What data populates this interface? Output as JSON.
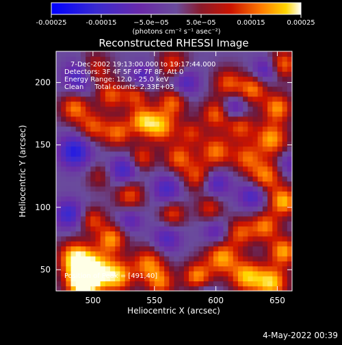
{
  "chart_data": {
    "type": "heatmap",
    "title": "Reconstructed RHESSI Image",
    "xlabel": "Heliocentric X (arcsec)",
    "ylabel": "Heliocentric Y (arcsec)",
    "xlim": [
      470,
      662
    ],
    "ylim": [
      33,
      225
    ],
    "xticks": [
      500,
      550,
      600,
      650
    ],
    "yticks": [
      50,
      100,
      150,
      200
    ],
    "colorbar": {
      "range": [
        -0.00025,
        0.00025
      ],
      "ticks": [
        "-0.00025",
        "-0.00015",
        "−5.0e−05",
        "5.0e−05",
        "0.00015",
        "0.00025"
      ],
      "unit_label": "(photons cm⁻² s⁻¹ asec⁻²)"
    },
    "annotations": [
      "7-Dec-2002 19:13:00.000 to 19:17:44.000",
      "Detectors: 3F 4F 5F 6F 7F 8F, Att 0",
      "Energy Range: 12.0 - 25.0 keV",
      "Clean     Total counts: 2.33E+03"
    ],
    "peak_label": "Position of Peak = [491,40]",
    "grid": false,
    "blobs": [
      {
        "x": 491,
        "y": 40,
        "v": 1.0,
        "s": 9
      },
      {
        "x": 500,
        "y": 50,
        "v": 0.95,
        "s": 11
      },
      {
        "x": 485,
        "y": 60,
        "v": 0.8,
        "s": 9
      },
      {
        "x": 520,
        "y": 45,
        "v": 0.75,
        "s": 9
      },
      {
        "x": 515,
        "y": 75,
        "v": 0.7,
        "s": 8
      },
      {
        "x": 545,
        "y": 55,
        "v": 0.65,
        "s": 9
      },
      {
        "x": 555,
        "y": 40,
        "v": 0.6,
        "s": 8
      },
      {
        "x": 500,
        "y": 90,
        "v": 0.5,
        "s": 7
      },
      {
        "x": 530,
        "y": 110,
        "v": 0.55,
        "s": 8
      },
      {
        "x": 585,
        "y": 45,
        "v": 0.7,
        "s": 8
      },
      {
        "x": 605,
        "y": 60,
        "v": 0.75,
        "s": 9
      },
      {
        "x": 625,
        "y": 45,
        "v": 0.8,
        "s": 9
      },
      {
        "x": 645,
        "y": 40,
        "v": 0.85,
        "s": 9
      },
      {
        "x": 655,
        "y": 65,
        "v": 0.75,
        "s": 8
      },
      {
        "x": 640,
        "y": 85,
        "v": 0.65,
        "s": 8
      },
      {
        "x": 620,
        "y": 80,
        "v": 0.55,
        "s": 8
      },
      {
        "x": 655,
        "y": 105,
        "v": 0.8,
        "s": 8
      },
      {
        "x": 640,
        "y": 125,
        "v": 0.7,
        "s": 9
      },
      {
        "x": 625,
        "y": 140,
        "v": 0.55,
        "s": 8
      },
      {
        "x": 600,
        "y": 145,
        "v": 0.65,
        "s": 9
      },
      {
        "x": 585,
        "y": 125,
        "v": 0.55,
        "s": 8
      },
      {
        "x": 570,
        "y": 140,
        "v": 0.6,
        "s": 8
      },
      {
        "x": 555,
        "y": 165,
        "v": 0.75,
        "s": 9
      },
      {
        "x": 540,
        "y": 170,
        "v": 0.7,
        "s": 8
      },
      {
        "x": 520,
        "y": 160,
        "v": 0.6,
        "s": 8
      },
      {
        "x": 500,
        "y": 165,
        "v": 0.55,
        "s": 8
      },
      {
        "x": 485,
        "y": 180,
        "v": 0.65,
        "s": 8
      },
      {
        "x": 500,
        "y": 210,
        "v": 0.6,
        "s": 9
      },
      {
        "x": 515,
        "y": 190,
        "v": 0.55,
        "s": 8
      },
      {
        "x": 535,
        "y": 190,
        "v": 0.5,
        "s": 7
      },
      {
        "x": 565,
        "y": 185,
        "v": 0.6,
        "s": 8
      },
      {
        "x": 580,
        "y": 160,
        "v": 0.45,
        "s": 7
      },
      {
        "x": 600,
        "y": 175,
        "v": 0.6,
        "s": 8
      },
      {
        "x": 620,
        "y": 165,
        "v": 0.55,
        "s": 8
      },
      {
        "x": 645,
        "y": 155,
        "v": 0.75,
        "s": 9
      },
      {
        "x": 650,
        "y": 180,
        "v": 0.7,
        "s": 8
      },
      {
        "x": 630,
        "y": 195,
        "v": 0.65,
        "s": 8
      },
      {
        "x": 610,
        "y": 200,
        "v": 0.55,
        "s": 8
      },
      {
        "x": 655,
        "y": 215,
        "v": 0.6,
        "s": 8
      },
      {
        "x": 565,
        "y": 215,
        "v": 0.5,
        "s": 8
      },
      {
        "x": 540,
        "y": 140,
        "v": 0.5,
        "s": 7
      },
      {
        "x": 565,
        "y": 95,
        "v": 0.5,
        "s": 7
      },
      {
        "x": 595,
        "y": 100,
        "v": 0.45,
        "s": 7
      },
      {
        "x": 505,
        "y": 125,
        "v": 0.3,
        "s": 7
      },
      {
        "x": 485,
        "y": 145,
        "v": -0.75,
        "s": 9
      },
      {
        "x": 490,
        "y": 205,
        "v": -0.7,
        "s": 9
      },
      {
        "x": 480,
        "y": 95,
        "v": -0.6,
        "s": 8
      },
      {
        "x": 525,
        "y": 130,
        "v": -0.55,
        "s": 8
      },
      {
        "x": 560,
        "y": 115,
        "v": -0.5,
        "s": 8
      },
      {
        "x": 600,
        "y": 120,
        "v": -0.5,
        "s": 8
      },
      {
        "x": 630,
        "y": 110,
        "v": -0.55,
        "s": 8
      },
      {
        "x": 615,
        "y": 180,
        "v": -0.5,
        "s": 7
      },
      {
        "x": 575,
        "y": 200,
        "v": -0.5,
        "s": 8
      },
      {
        "x": 540,
        "y": 205,
        "v": -0.45,
        "s": 7
      },
      {
        "x": 640,
        "y": 210,
        "v": -0.5,
        "s": 7
      },
      {
        "x": 560,
        "y": 75,
        "v": -0.45,
        "s": 8
      },
      {
        "x": 600,
        "y": 80,
        "v": -0.4,
        "s": 7
      },
      {
        "x": 530,
        "y": 90,
        "v": -0.4,
        "s": 7
      },
      {
        "x": 590,
        "y": 30,
        "v": -0.3,
        "s": 7
      },
      {
        "x": 660,
        "y": 135,
        "v": -0.35,
        "s": 7
      }
    ]
  },
  "footer": {
    "timestamp": "4-May-2022 00:39"
  }
}
